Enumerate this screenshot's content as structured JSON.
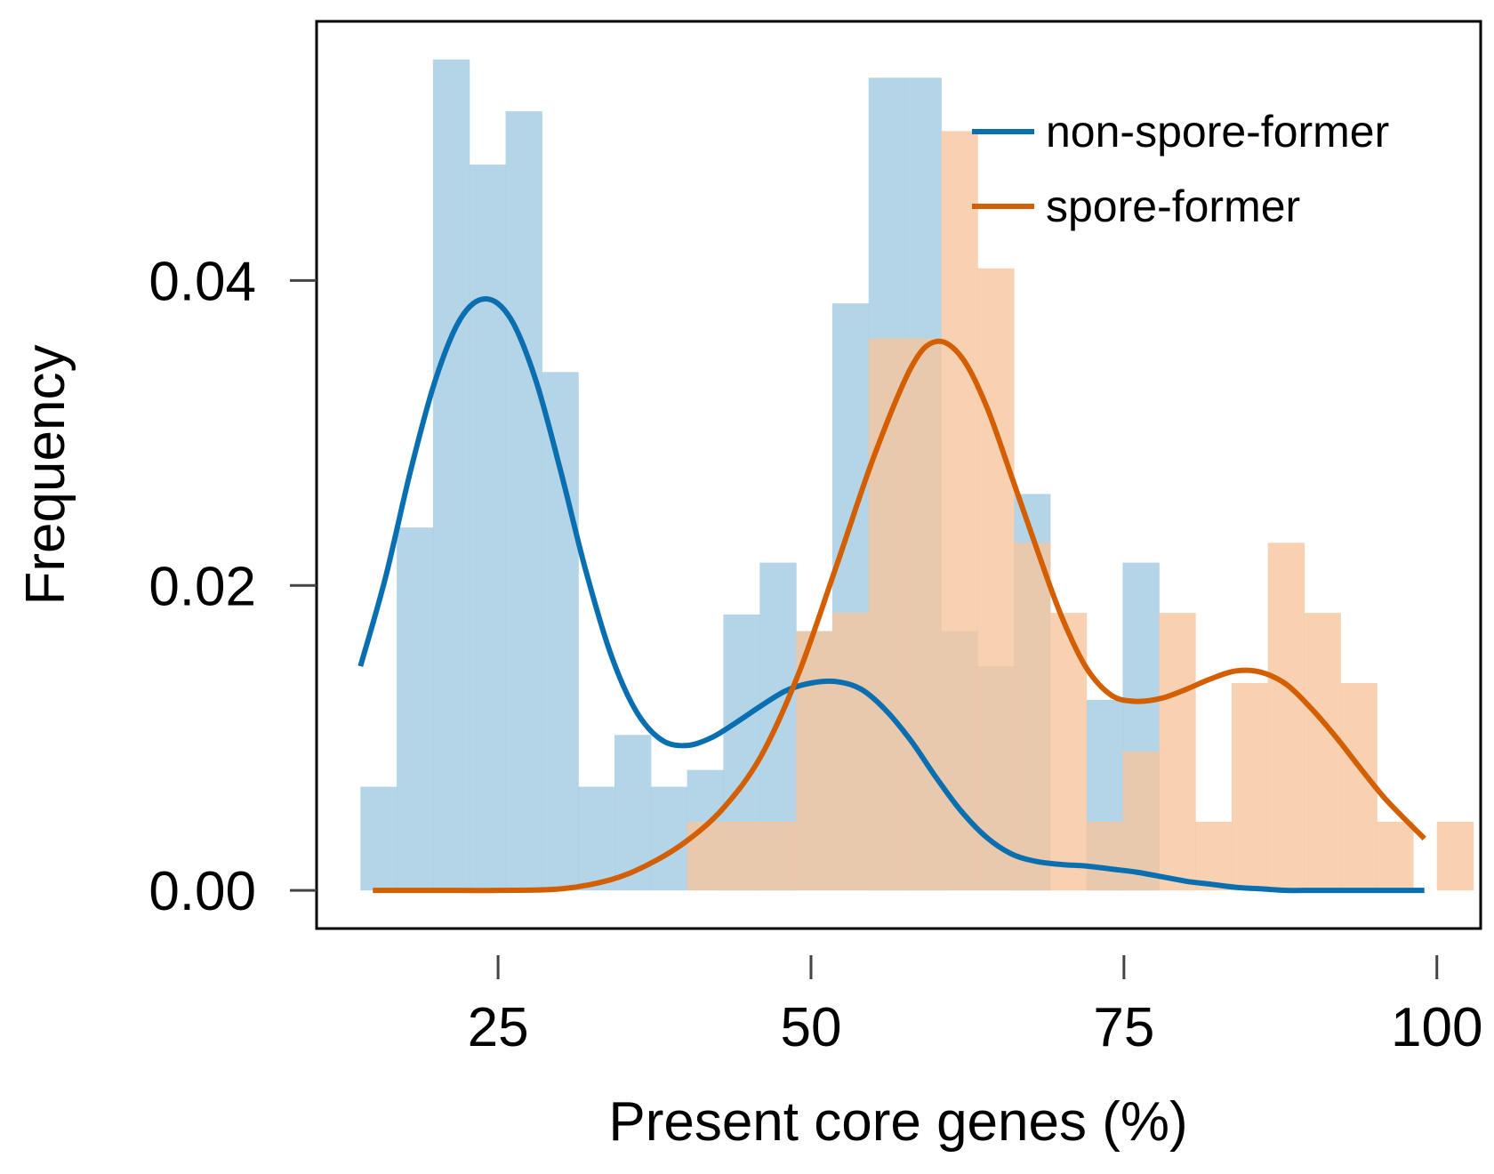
{
  "chart_data": {
    "type": "histogram-density",
    "xlabel": "Present core genes (%)",
    "ylabel": "Frequency",
    "xlim": [
      10.5,
      103.5
    ],
    "ylim": [
      -0.0025,
      0.057
    ],
    "xticks": [
      25,
      50,
      75,
      100
    ],
    "xtick_labels": [
      "25",
      "50",
      "75",
      "100"
    ],
    "yticks": [
      0.0,
      0.02,
      0.04
    ],
    "ytick_labels": [
      "0.00",
      "0.02",
      "0.04"
    ],
    "grid": false,
    "legend": {
      "position": "top-right",
      "entries": [
        "non-spore-former",
        "spore-former"
      ]
    },
    "colors": {
      "non_spore_former_line": "#0A6FB0",
      "non_spore_former_fill": "#A6CEE3",
      "spore_former_line": "#D35F00",
      "spore_former_fill": "#F6C6A0"
    },
    "series": [
      {
        "name": "non-spore-former",
        "histogram": {
          "bins": [
            [
              14.0,
              16.9,
              0.0068
            ],
            [
              16.9,
              19.8,
              0.0238
            ],
            [
              19.8,
              22.7,
              0.0545
            ],
            [
              22.7,
              25.6,
              0.0476
            ],
            [
              25.6,
              28.5,
              0.0511
            ],
            [
              28.5,
              31.4,
              0.034
            ],
            [
              31.4,
              34.3,
              0.0068
            ],
            [
              34.3,
              37.2,
              0.0102
            ],
            [
              37.2,
              40.1,
              0.0068
            ],
            [
              40.1,
              43.0,
              0.0079
            ],
            [
              43.0,
              45.9,
              0.0181
            ],
            [
              45.9,
              48.8,
              0.0215
            ],
            [
              48.8,
              51.7,
              0.017
            ],
            [
              51.7,
              54.6,
              0.0385
            ],
            [
              54.6,
              57.5,
              0.0533
            ],
            [
              57.5,
              60.4,
              0.0533
            ],
            [
              60.4,
              63.3,
              0.017
            ],
            [
              63.3,
              66.2,
              0.0147
            ],
            [
              66.2,
              69.1,
              0.026
            ],
            [
              72.0,
              74.9,
              0.0125
            ],
            [
              74.9,
              77.8,
              0.0215
            ]
          ]
        },
        "density": {
          "x": [
            14,
            16,
            18,
            20,
            22,
            24,
            26,
            28,
            30,
            32,
            34,
            36,
            38,
            40,
            42,
            44,
            46,
            48,
            50,
            52,
            54,
            56,
            58,
            60,
            62,
            64,
            66,
            68,
            70,
            72,
            74,
            76,
            78,
            80,
            82,
            84,
            86,
            88,
            90,
            92,
            94,
            96,
            99
          ],
          "y": [
            0.0147,
            0.0205,
            0.0275,
            0.0335,
            0.0375,
            0.0388,
            0.0375,
            0.0335,
            0.0275,
            0.021,
            0.0155,
            0.0118,
            0.0099,
            0.0095,
            0.01,
            0.011,
            0.0121,
            0.0131,
            0.0136,
            0.0137,
            0.0132,
            0.0118,
            0.0098,
            0.0074,
            0.0052,
            0.0035,
            0.0024,
            0.0019,
            0.0017,
            0.0016,
            0.0014,
            0.0012,
            0.0009,
            0.0006,
            0.0004,
            0.0002,
            0.0001,
            0.0,
            0.0,
            0.0,
            0.0,
            0.0,
            0.0
          ]
        }
      },
      {
        "name": "spore-former",
        "histogram": {
          "bins": [
            [
              40.1,
              43.0,
              0.0045
            ],
            [
              43.0,
              45.9,
              0.0045
            ],
            [
              45.9,
              48.8,
              0.0045
            ],
            [
              48.8,
              51.7,
              0.017
            ],
            [
              51.7,
              54.6,
              0.0182
            ],
            [
              54.6,
              57.5,
              0.0362
            ],
            [
              57.5,
              60.4,
              0.0362
            ],
            [
              60.4,
              63.3,
              0.0498
            ],
            [
              63.3,
              66.2,
              0.0408
            ],
            [
              66.2,
              69.1,
              0.0228
            ],
            [
              69.1,
              72.0,
              0.0182
            ],
            [
              72.0,
              74.9,
              0.0045
            ],
            [
              74.9,
              77.8,
              0.0091
            ],
            [
              77.8,
              80.7,
              0.0182
            ],
            [
              80.7,
              83.6,
              0.0045
            ],
            [
              83.6,
              86.5,
              0.0136
            ],
            [
              86.5,
              89.4,
              0.0228
            ],
            [
              89.4,
              92.3,
              0.0182
            ],
            [
              92.3,
              95.2,
              0.0136
            ],
            [
              95.2,
              98.1,
              0.0045
            ],
            [
              100.0,
              102.9,
              0.0045
            ]
          ]
        },
        "density": {
          "x": [
            15,
            20,
            25,
            30,
            34,
            37,
            40,
            43,
            46,
            49,
            52,
            55,
            58,
            60,
            62,
            64,
            66,
            68,
            70,
            72,
            74,
            76,
            78,
            80,
            82,
            84,
            86,
            88,
            90,
            92,
            94,
            96,
            99
          ],
          "y": [
            0.0,
            0.0,
            0.0,
            0.0001,
            0.0007,
            0.0017,
            0.0032,
            0.0054,
            0.0088,
            0.0142,
            0.0212,
            0.0284,
            0.0343,
            0.036,
            0.035,
            0.0318,
            0.0272,
            0.0225,
            0.018,
            0.0146,
            0.0128,
            0.0124,
            0.0126,
            0.0132,
            0.0139,
            0.0144,
            0.0143,
            0.0135,
            0.0119,
            0.01,
            0.0079,
            0.0059,
            0.0034
          ]
        }
      }
    ]
  }
}
